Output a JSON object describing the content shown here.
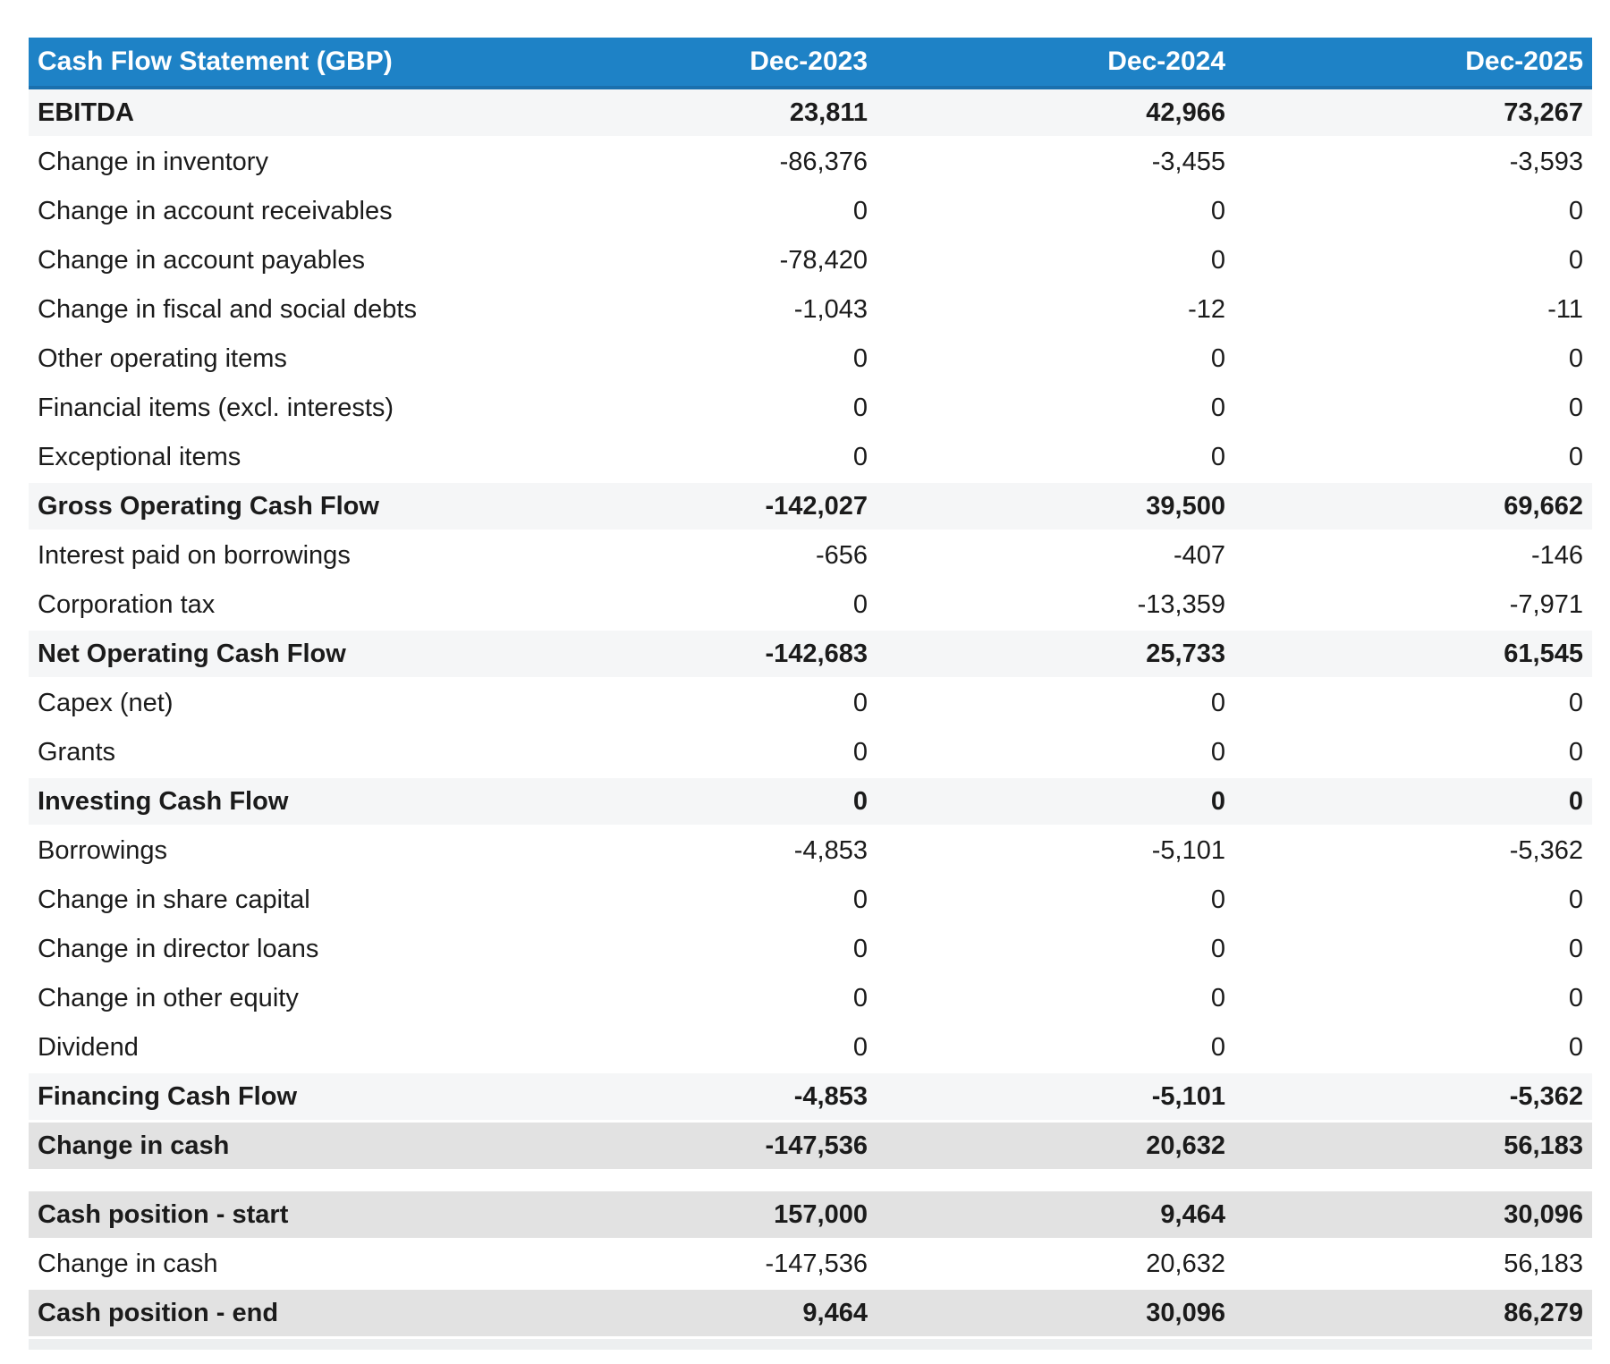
{
  "table": {
    "title": "Cash Flow Statement (GBP)",
    "columns": [
      "Dec-2023",
      "Dec-2024",
      "Dec-2025"
    ],
    "rows": [
      {
        "label": "EBITDA",
        "values": [
          "23,811",
          "42,966",
          "73,267"
        ],
        "style": "subtotal"
      },
      {
        "label": "Change in inventory",
        "values": [
          "-86,376",
          "-3,455",
          "-3,593"
        ],
        "style": "plain"
      },
      {
        "label": "Change in account receivables",
        "values": [
          "0",
          "0",
          "0"
        ],
        "style": "plain"
      },
      {
        "label": "Change in account payables",
        "values": [
          "-78,420",
          "0",
          "0"
        ],
        "style": "plain"
      },
      {
        "label": "Change in fiscal and social debts",
        "values": [
          "-1,043",
          "-12",
          "-11"
        ],
        "style": "plain"
      },
      {
        "label": "Other operating items",
        "values": [
          "0",
          "0",
          "0"
        ],
        "style": "plain"
      },
      {
        "label": "Financial items (excl. interests)",
        "values": [
          "0",
          "0",
          "0"
        ],
        "style": "plain"
      },
      {
        "label": "Exceptional items",
        "values": [
          "0",
          "0",
          "0"
        ],
        "style": "plain"
      },
      {
        "label": "Gross Operating Cash Flow",
        "values": [
          "-142,027",
          "39,500",
          "69,662"
        ],
        "style": "subtotal"
      },
      {
        "label": "Interest paid on borrowings",
        "values": [
          "-656",
          "-407",
          "-146"
        ],
        "style": "plain"
      },
      {
        "label": "Corporation tax",
        "values": [
          "0",
          "-13,359",
          "-7,971"
        ],
        "style": "plain"
      },
      {
        "label": "Net Operating Cash Flow",
        "values": [
          "-142,683",
          "25,733",
          "61,545"
        ],
        "style": "subtotal"
      },
      {
        "label": "Capex (net)",
        "values": [
          "0",
          "0",
          "0"
        ],
        "style": "plain"
      },
      {
        "label": "Grants",
        "values": [
          "0",
          "0",
          "0"
        ],
        "style": "plain"
      },
      {
        "label": "Investing Cash Flow",
        "values": [
          "0",
          "0",
          "0"
        ],
        "style": "subtotal"
      },
      {
        "label": "Borrowings",
        "values": [
          "-4,853",
          "-5,101",
          "-5,362"
        ],
        "style": "plain"
      },
      {
        "label": "Change in share capital",
        "values": [
          "0",
          "0",
          "0"
        ],
        "style": "plain"
      },
      {
        "label": "Change in director loans",
        "values": [
          "0",
          "0",
          "0"
        ],
        "style": "plain"
      },
      {
        "label": "Change in other equity",
        "values": [
          "0",
          "0",
          "0"
        ],
        "style": "plain"
      },
      {
        "label": "Dividend",
        "values": [
          "0",
          "0",
          "0"
        ],
        "style": "plain"
      },
      {
        "label": "Financing Cash Flow",
        "values": [
          "-4,853",
          "-5,101",
          "-5,362"
        ],
        "style": "subtotal"
      },
      {
        "label": "Change in cash",
        "values": [
          "-147,536",
          "20,632",
          "56,183"
        ],
        "style": "total"
      },
      {
        "style": "spacer"
      },
      {
        "label": "Cash position - start",
        "values": [
          "157,000",
          "9,464",
          "30,096"
        ],
        "style": "total"
      },
      {
        "label": "Change in cash",
        "values": [
          "-147,536",
          "20,632",
          "56,183"
        ],
        "style": "plain"
      },
      {
        "label": "Cash position - end",
        "values": [
          "9,464",
          "30,096",
          "86,279"
        ],
        "style": "total"
      }
    ]
  },
  "colors": {
    "header_bg": "#1e82c6",
    "header_edge": "#1a70ae",
    "header_text": "#ffffff",
    "subtotal_bg": "#f5f6f7",
    "total_bg": "#e2e2e2",
    "footer_bg": "#edeff0",
    "body_text": "#1b1b1b"
  }
}
